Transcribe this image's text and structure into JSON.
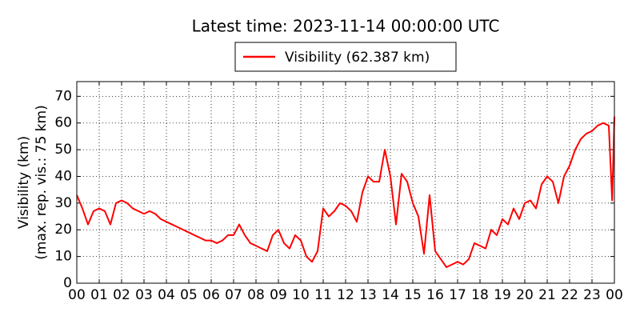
{
  "chart_data": {
    "type": "line",
    "title": "Latest time: 2023-11-14 00:00:00 UTC",
    "y_label": [
      "Visibility (km)",
      "(max. rep. vis.: 75 km)"
    ],
    "x": [
      0,
      0.25,
      0.5,
      0.75,
      1,
      1.25,
      1.5,
      1.75,
      2,
      2.25,
      2.5,
      2.75,
      3,
      3.25,
      3.5,
      3.75,
      4,
      4.25,
      4.5,
      4.75,
      5,
      5.25,
      5.5,
      5.75,
      6,
      6.25,
      6.5,
      6.75,
      7,
      7.25,
      7.5,
      7.75,
      8,
      8.25,
      8.5,
      8.75,
      9,
      9.25,
      9.5,
      9.75,
      10,
      10.25,
      10.5,
      10.75,
      11,
      11.25,
      11.5,
      11.75,
      12,
      12.25,
      12.5,
      12.75,
      13,
      13.25,
      13.5,
      13.75,
      14,
      14.25,
      14.5,
      14.75,
      15,
      15.25,
      15.5,
      15.75,
      16,
      16.25,
      16.5,
      16.75,
      17,
      17.25,
      17.5,
      17.75,
      18,
      18.25,
      18.5,
      18.75,
      19,
      19.25,
      19.5,
      19.75,
      20,
      20.25,
      20.5,
      20.75,
      21,
      21.25,
      21.5,
      21.75,
      22,
      22.25,
      22.5,
      22.75,
      23,
      23.25,
      23.5,
      23.75,
      23.9,
      24
    ],
    "series": [
      {
        "name": "Visibility (62.387 km)",
        "color": "#ff0000",
        "values": [
          33,
          28,
          22,
          27,
          28,
          27,
          22,
          30,
          31,
          30,
          28,
          27,
          26,
          27,
          26,
          24,
          23,
          22,
          21,
          20,
          19,
          18,
          17,
          16,
          16,
          15,
          16,
          18,
          18,
          22,
          18,
          15,
          14,
          13,
          12,
          18,
          20,
          15,
          13,
          18,
          16,
          10,
          8,
          12,
          28,
          25,
          27,
          30,
          29,
          27,
          23,
          34,
          40,
          38,
          38,
          50,
          40,
          22,
          41,
          38,
          30,
          25,
          11,
          33,
          12,
          9,
          6,
          7,
          8,
          7,
          9,
          15,
          14,
          13,
          20,
          18,
          24,
          22,
          28,
          24,
          30,
          31,
          28,
          37,
          40,
          38,
          30,
          40,
          44,
          50,
          54,
          56,
          57,
          59,
          60,
          59,
          31,
          62.387
        ]
      }
    ],
    "xlim": [
      0,
      24
    ],
    "ylim": [
      0,
      75.5
    ],
    "xticks": [
      {
        "value": 0,
        "label": "00"
      },
      {
        "value": 1,
        "label": "01"
      },
      {
        "value": 2,
        "label": "02"
      },
      {
        "value": 3,
        "label": "03"
      },
      {
        "value": 4,
        "label": "04"
      },
      {
        "value": 5,
        "label": "05"
      },
      {
        "value": 6,
        "label": "06"
      },
      {
        "value": 7,
        "label": "07"
      },
      {
        "value": 8,
        "label": "08"
      },
      {
        "value": 9,
        "label": "09"
      },
      {
        "value": 10,
        "label": "10"
      },
      {
        "value": 11,
        "label": "11"
      },
      {
        "value": 12,
        "label": "12"
      },
      {
        "value": 13,
        "label": "13"
      },
      {
        "value": 14,
        "label": "14"
      },
      {
        "value": 15,
        "label": "15"
      },
      {
        "value": 16,
        "label": "16"
      },
      {
        "value": 17,
        "label": "17"
      },
      {
        "value": 18,
        "label": "18"
      },
      {
        "value": 19,
        "label": "19"
      },
      {
        "value": 20,
        "label": "20"
      },
      {
        "value": 21,
        "label": "21"
      },
      {
        "value": 22,
        "label": "22"
      },
      {
        "value": 23,
        "label": "23"
      },
      {
        "value": 24,
        "label": "00"
      }
    ],
    "yticks": [
      0,
      10,
      20,
      30,
      40,
      50,
      60,
      70
    ],
    "grid": true,
    "legend": "top"
  }
}
